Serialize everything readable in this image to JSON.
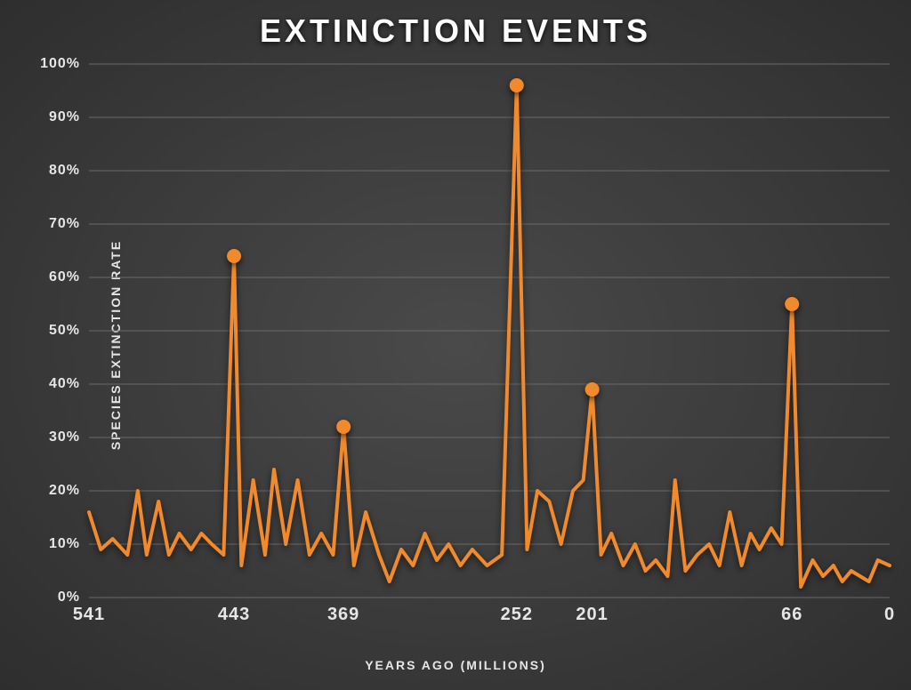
{
  "chart": {
    "type": "line",
    "title": "EXTINCTION EVENTS",
    "title_fontsize": 36,
    "title_color": "#ffffff",
    "background": {
      "type": "radial",
      "inner": "#4a4a4a",
      "outer": "#2e2e2e"
    },
    "x_axis": {
      "label": "YEARS AGO (MILLIONS)",
      "label_fontsize": 14,
      "label_color": "#e6e6e6",
      "min": 541,
      "max": 0,
      "reversed": true,
      "tick_values": [
        541,
        443,
        369,
        252,
        201,
        66,
        0
      ],
      "tick_fontsize": 20
    },
    "y_axis": {
      "label": "SPECIES EXTINCTION RATE",
      "label_fontsize": 14,
      "label_color": "#e6e6e6",
      "min": 0,
      "max": 100,
      "tick_step": 10,
      "tick_suffix": "%",
      "tick_fontsize": 16,
      "grid": true,
      "grid_color": "#6a6a6a"
    },
    "series": {
      "color": "#f08a2c",
      "line_width": 4,
      "marker_radius": 8,
      "data": [
        {
          "x": 541,
          "y": 16
        },
        {
          "x": 533,
          "y": 9
        },
        {
          "x": 525,
          "y": 11
        },
        {
          "x": 515,
          "y": 8
        },
        {
          "x": 508,
          "y": 20
        },
        {
          "x": 502,
          "y": 8
        },
        {
          "x": 494,
          "y": 18
        },
        {
          "x": 487,
          "y": 8
        },
        {
          "x": 480,
          "y": 12
        },
        {
          "x": 472,
          "y": 9
        },
        {
          "x": 465,
          "y": 12
        },
        {
          "x": 458,
          "y": 10
        },
        {
          "x": 450,
          "y": 8
        },
        {
          "x": 443,
          "y": 64
        },
        {
          "x": 438,
          "y": 6
        },
        {
          "x": 430,
          "y": 22
        },
        {
          "x": 422,
          "y": 8
        },
        {
          "x": 416,
          "y": 24
        },
        {
          "x": 408,
          "y": 10
        },
        {
          "x": 400,
          "y": 22
        },
        {
          "x": 392,
          "y": 8
        },
        {
          "x": 384,
          "y": 12
        },
        {
          "x": 376,
          "y": 8
        },
        {
          "x": 369,
          "y": 32
        },
        {
          "x": 362,
          "y": 6
        },
        {
          "x": 354,
          "y": 16
        },
        {
          "x": 345,
          "y": 8
        },
        {
          "x": 338,
          "y": 3
        },
        {
          "x": 330,
          "y": 9
        },
        {
          "x": 322,
          "y": 6
        },
        {
          "x": 314,
          "y": 12
        },
        {
          "x": 306,
          "y": 7
        },
        {
          "x": 298,
          "y": 10
        },
        {
          "x": 290,
          "y": 6
        },
        {
          "x": 282,
          "y": 9
        },
        {
          "x": 272,
          "y": 6
        },
        {
          "x": 262,
          "y": 8
        },
        {
          "x": 252,
          "y": 96
        },
        {
          "x": 245,
          "y": 9
        },
        {
          "x": 238,
          "y": 20
        },
        {
          "x": 230,
          "y": 18
        },
        {
          "x": 222,
          "y": 10
        },
        {
          "x": 214,
          "y": 20
        },
        {
          "x": 207,
          "y": 22
        },
        {
          "x": 201,
          "y": 39
        },
        {
          "x": 195,
          "y": 8
        },
        {
          "x": 188,
          "y": 12
        },
        {
          "x": 180,
          "y": 6
        },
        {
          "x": 172,
          "y": 10
        },
        {
          "x": 165,
          "y": 5
        },
        {
          "x": 158,
          "y": 7
        },
        {
          "x": 150,
          "y": 4
        },
        {
          "x": 145,
          "y": 22
        },
        {
          "x": 138,
          "y": 5
        },
        {
          "x": 130,
          "y": 8
        },
        {
          "x": 122,
          "y": 10
        },
        {
          "x": 115,
          "y": 6
        },
        {
          "x": 108,
          "y": 16
        },
        {
          "x": 100,
          "y": 6
        },
        {
          "x": 94,
          "y": 12
        },
        {
          "x": 88,
          "y": 9
        },
        {
          "x": 80,
          "y": 13
        },
        {
          "x": 73,
          "y": 10
        },
        {
          "x": 66,
          "y": 55
        },
        {
          "x": 60,
          "y": 2
        },
        {
          "x": 52,
          "y": 7
        },
        {
          "x": 45,
          "y": 4
        },
        {
          "x": 38,
          "y": 6
        },
        {
          "x": 32,
          "y": 3
        },
        {
          "x": 26,
          "y": 5
        },
        {
          "x": 20,
          "y": 4
        },
        {
          "x": 14,
          "y": 3
        },
        {
          "x": 8,
          "y": 7
        },
        {
          "x": 0,
          "y": 6
        }
      ],
      "markers_at_x": [
        443,
        369,
        252,
        201,
        66
      ]
    }
  }
}
